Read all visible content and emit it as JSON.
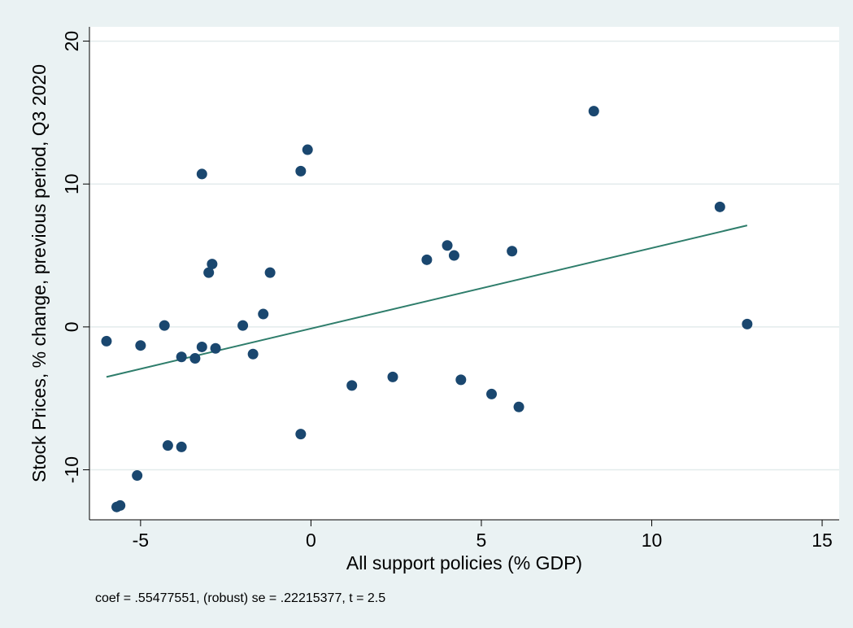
{
  "chart_data": {
    "type": "scatter",
    "title": "",
    "xlabel": "All support policies (% GDP)",
    "ylabel": "Stock Prices, % change, previous period, Q3 2020",
    "xlim": [
      -6.5,
      15.5
    ],
    "ylim": [
      -13.5,
      21
    ],
    "x_ticks": [
      -5,
      0,
      5,
      10,
      15
    ],
    "x_tick_labels": [
      "-5",
      "0",
      "5",
      "10",
      "15"
    ],
    "y_ticks": [
      -10,
      0,
      10,
      20
    ],
    "y_tick_labels": [
      "-10",
      "0",
      "10",
      "20"
    ],
    "grid": "horizontal",
    "note": "coef = .55477551, (robust) se = .22215377, t = 2.5",
    "colors": {
      "background": "#eaf2f3",
      "plot_area": "#ffffff",
      "points": "#1a476f",
      "fit_line": "#2e7d6b"
    },
    "points": [
      {
        "x": -6.0,
        "y": -1.0
      },
      {
        "x": -5.0,
        "y": -1.3
      },
      {
        "x": -5.1,
        "y": -10.4
      },
      {
        "x": -5.7,
        "y": -12.6
      },
      {
        "x": -5.6,
        "y": -12.5
      },
      {
        "x": -4.3,
        "y": 0.1
      },
      {
        "x": -4.2,
        "y": -8.3
      },
      {
        "x": -3.8,
        "y": -8.4
      },
      {
        "x": -3.8,
        "y": -2.1
      },
      {
        "x": -3.4,
        "y": -2.2
      },
      {
        "x": -3.2,
        "y": -1.4
      },
      {
        "x": -3.2,
        "y": 10.7
      },
      {
        "x": -3.0,
        "y": 3.8
      },
      {
        "x": -2.9,
        "y": 4.4
      },
      {
        "x": -2.8,
        "y": -1.5
      },
      {
        "x": -2.0,
        "y": 0.1
      },
      {
        "x": -1.7,
        "y": -1.9
      },
      {
        "x": -1.4,
        "y": 0.9
      },
      {
        "x": -1.2,
        "y": 3.8
      },
      {
        "x": -0.3,
        "y": 10.9
      },
      {
        "x": -0.3,
        "y": -7.5
      },
      {
        "x": -0.1,
        "y": 12.4
      },
      {
        "x": 1.2,
        "y": -4.1
      },
      {
        "x": 2.4,
        "y": -3.5
      },
      {
        "x": 3.4,
        "y": 4.7
      },
      {
        "x": 4.0,
        "y": 5.7
      },
      {
        "x": 4.2,
        "y": 5.0
      },
      {
        "x": 4.4,
        "y": -3.7
      },
      {
        "x": 5.3,
        "y": -4.7
      },
      {
        "x": 5.9,
        "y": 5.3
      },
      {
        "x": 6.1,
        "y": -5.6
      },
      {
        "x": 8.3,
        "y": 15.1
      },
      {
        "x": 12.0,
        "y": 8.4
      },
      {
        "x": 12.8,
        "y": 0.2
      }
    ],
    "fit_line": {
      "x": [
        -6.0,
        12.8
      ],
      "y": [
        -3.5,
        7.1
      ]
    }
  }
}
